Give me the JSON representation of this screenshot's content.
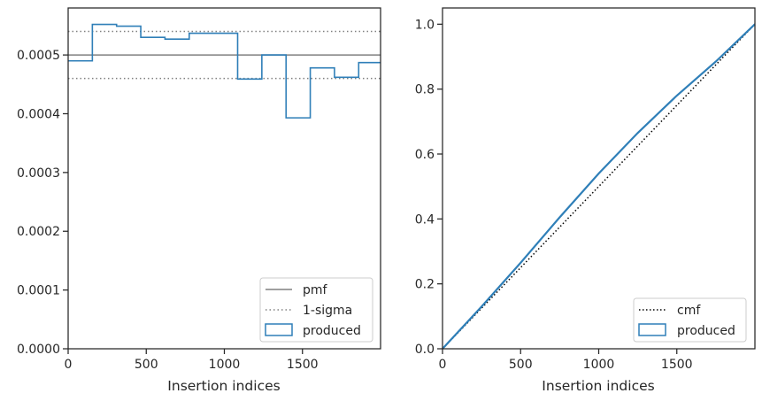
{
  "chart_data": [
    {
      "type": "histogram",
      "xlabel": "Insertion indices",
      "ylabel": "",
      "xlim": [
        0,
        2000
      ],
      "ylim": [
        0,
        0.00058
      ],
      "xticks": [
        0,
        500,
        1000,
        1500
      ],
      "xtick_labels": [
        "0",
        "500",
        "1000",
        "1500"
      ],
      "yticks": [
        0,
        0.0001,
        0.0002,
        0.0003,
        0.0004,
        0.0005
      ],
      "ytick_labels": [
        "0.0000",
        "0.0001",
        "0.0002",
        "0.0003",
        "0.0004",
        "0.0005"
      ],
      "grid": false,
      "legend_position": "lower right",
      "pmf": {
        "name": "pmf",
        "value": 0.0005,
        "color": "#808080"
      },
      "sigma": {
        "name": "1-sigma",
        "values": [
          0.00046,
          0.00054
        ],
        "color": "#808080"
      },
      "histogram": {
        "name": "produced",
        "color": "#2f7fb8",
        "bin_edges": [
          0,
          155,
          310,
          465,
          620,
          775,
          930,
          1085,
          1240,
          1395,
          1550,
          1705,
          1860,
          2000
        ],
        "values": [
          0.00049,
          0.000552,
          0.000549,
          0.00053,
          0.000527,
          0.000537,
          0.000537,
          0.000459,
          0.0005,
          0.000393,
          0.000478,
          0.000462,
          0.000487
        ]
      }
    },
    {
      "type": "line",
      "xlabel": "Insertion indices",
      "ylabel": "",
      "xlim": [
        0,
        2000
      ],
      "ylim": [
        0,
        1.05
      ],
      "xticks": [
        0,
        500,
        1000,
        1500
      ],
      "xtick_labels": [
        "0",
        "500",
        "1000",
        "1500"
      ],
      "yticks": [
        0,
        0.2,
        0.4,
        0.6,
        0.8,
        1.0
      ],
      "ytick_labels": [
        "0.0",
        "0.2",
        "0.4",
        "0.6",
        "0.8",
        "1.0"
      ],
      "grid": false,
      "legend_position": "lower right",
      "series": [
        {
          "name": "cmf",
          "style": "dotted",
          "color": "#000000",
          "x": [
            0,
            2000
          ],
          "y": [
            0,
            1
          ]
        },
        {
          "name": "produced",
          "style": "solid",
          "color": "#2f7fb8",
          "x": [
            0,
            250,
            500,
            750,
            1000,
            1250,
            1500,
            1750,
            2000
          ],
          "y": [
            0,
            0.13,
            0.265,
            0.405,
            0.54,
            0.665,
            0.78,
            0.885,
            1.0
          ]
        }
      ]
    }
  ]
}
